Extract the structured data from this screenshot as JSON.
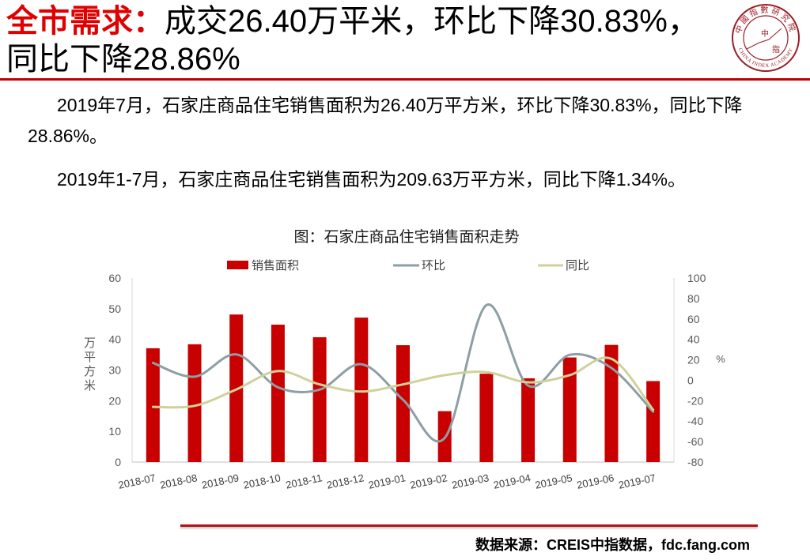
{
  "header": {
    "title_highlight": "全市需求：",
    "title_line1_rest": "成交26.40万平米，环比下降30.83%，",
    "title_line2": "同比下降28.86%"
  },
  "logo": {
    "top_text": "中國指數研究院",
    "bottom_text": "CHINA INDEX ACADEMY",
    "center_text_1": "中",
    "center_text_2": "指"
  },
  "body": {
    "p1_line1": "2019年7月，石家庄商品住宅销售面积为26.40万平方米，环比下降30.83%，同比下降",
    "p1_line2": "28.86%。",
    "p2": "2019年1-7月，石家庄商品住宅销售面积为209.63万平方米，同比下降1.34%。"
  },
  "chart_data": {
    "type": "bar",
    "title": "图：石家庄商品住宅销售面积走势",
    "categories": [
      "2018-07",
      "2018-08",
      "2018-09",
      "2018-10",
      "2018-11",
      "2018-12",
      "2019-01",
      "2019-02",
      "2019-03",
      "2019-04",
      "2019-05",
      "2019-06",
      "2019-07"
    ],
    "ylabel": "万平方米",
    "ylim": [
      0,
      60
    ],
    "yticks": [
      0,
      10,
      20,
      30,
      40,
      50,
      60
    ],
    "y2label": "%",
    "y2lim": [
      -80,
      100
    ],
    "y2ticks": [
      -80,
      -60,
      -40,
      -20,
      0,
      20,
      40,
      60,
      80,
      100
    ],
    "grid": false,
    "legend_position": "top",
    "series": [
      {
        "name": "销售面积",
        "type": "bar",
        "axis": "left",
        "color": "#c80000",
        "values": [
          37.1,
          38.4,
          48.1,
          44.8,
          40.7,
          47.1,
          38.1,
          16.6,
          28.8,
          27.3,
          34.1,
          38.2,
          26.4
        ]
      },
      {
        "name": "环比",
        "type": "line",
        "axis": "right",
        "color": "#8e9ea5",
        "values": [
          17.0,
          3.5,
          25.3,
          -6.9,
          -9.2,
          15.7,
          -19.1,
          -56.4,
          73.5,
          -5.2,
          24.9,
          12.0,
          -30.83
        ]
      },
      {
        "name": "同比",
        "type": "line",
        "axis": "right",
        "color": "#cfd19b",
        "values": [
          -26.0,
          -25.0,
          -9.0,
          9.0,
          -4.0,
          -11.0,
          -4.0,
          5.0,
          8.0,
          -2.0,
          5.0,
          21.0,
          -28.86
        ]
      }
    ]
  },
  "footer": {
    "source": "数据来源：CREIS中指数据，fdc.fang.com"
  },
  "colors": {
    "title_highlight": "#e00000",
    "title_rule": "#c00000",
    "footer_rule": "#b01418",
    "logo": "#9c1c26"
  }
}
